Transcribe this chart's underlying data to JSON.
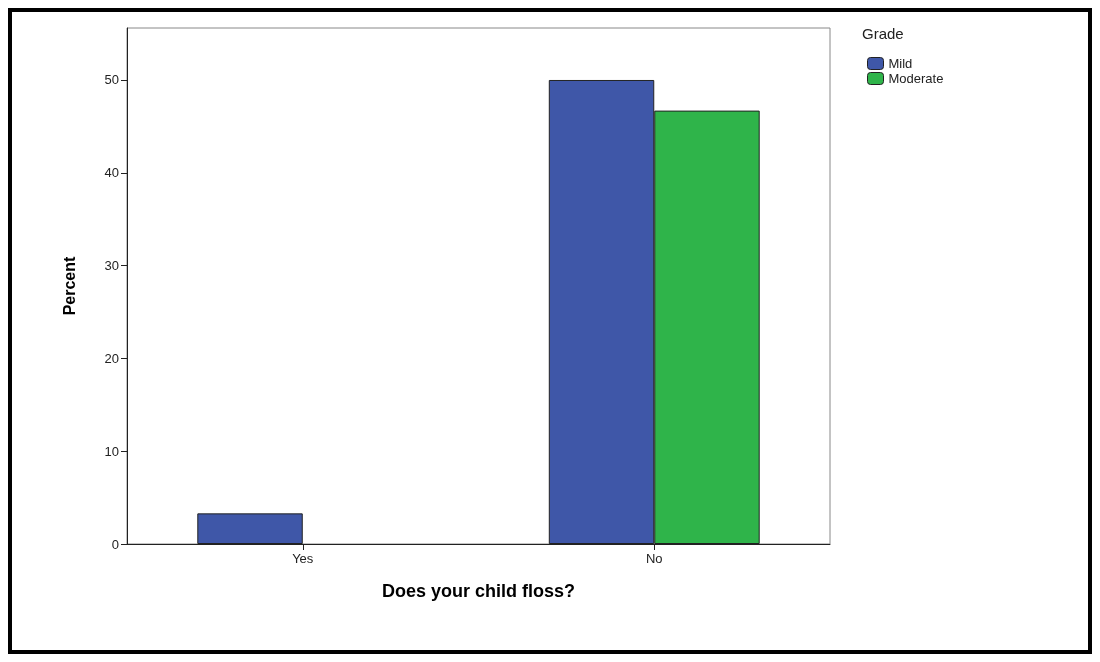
{
  "chart_data": {
    "type": "bar",
    "xlabel": "Does your child floss?",
    "ylabel": "Percent",
    "legend_title": "Grade",
    "categories": [
      "Yes",
      "No"
    ],
    "series": [
      {
        "name": "Mild",
        "color": "#3f57a8",
        "values": [
          3.3,
          50
        ]
      },
      {
        "name": "Moderate",
        "color": "#2fb44a",
        "values": [
          null,
          46.7
        ]
      }
    ],
    "ylim": [
      0,
      55.6
    ],
    "yticks": [
      0,
      10,
      20,
      30,
      40,
      50
    ],
    "grid": false,
    "legend": "top right"
  }
}
